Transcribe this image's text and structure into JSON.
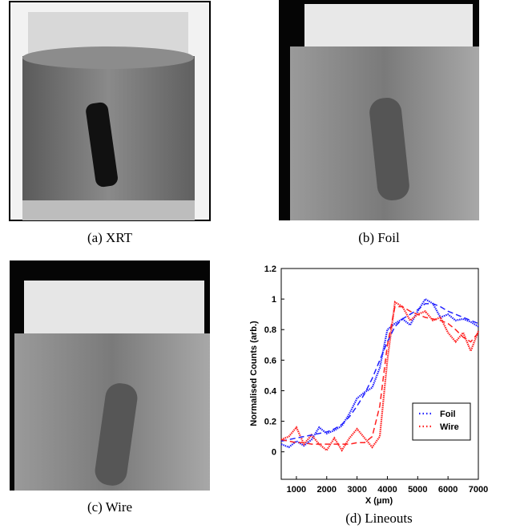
{
  "figure": {
    "captions": [
      "(a) XRT",
      "(b) Foil",
      "(c) Wire",
      "(d) Lineouts"
    ]
  },
  "chart_data": {
    "type": "line",
    "xlabel": "X (μm)",
    "ylabel": "Normalised Counts (arb.)",
    "x": [
      500,
      750,
      1000,
      1250,
      1500,
      1750,
      2000,
      2250,
      2500,
      2750,
      3000,
      3250,
      3500,
      3750,
      4000,
      4250,
      4500,
      4750,
      5000,
      5250,
      5500,
      5750,
      6000,
      6250,
      6500,
      6750,
      7000
    ],
    "series": [
      {
        "name": "Foil",
        "color": "#1f1fff",
        "style": "dotted",
        "values": [
          0.05,
          0.03,
          0.07,
          0.04,
          0.08,
          0.16,
          0.12,
          0.14,
          0.17,
          0.25,
          0.35,
          0.39,
          0.42,
          0.55,
          0.8,
          0.84,
          0.87,
          0.83,
          0.92,
          1.0,
          0.97,
          0.88,
          0.9,
          0.86,
          0.87,
          0.85,
          0.82
        ]
      },
      {
        "name": "Wire",
        "color": "#ff2020",
        "style": "dotted",
        "values": [
          0.08,
          0.1,
          0.16,
          0.05,
          0.11,
          0.05,
          0.01,
          0.09,
          0.01,
          0.09,
          0.15,
          0.09,
          0.03,
          0.1,
          0.6,
          0.98,
          0.95,
          0.86,
          0.9,
          0.92,
          0.86,
          0.88,
          0.78,
          0.72,
          0.78,
          0.66,
          0.79
        ]
      },
      {
        "color": "#1f1fff",
        "style": "dashed",
        "values": [
          0.07,
          0.08,
          0.09,
          0.1,
          0.11,
          0.12,
          0.13,
          0.15,
          0.18,
          0.23,
          0.3,
          0.38,
          0.48,
          0.6,
          0.72,
          0.82,
          0.87,
          0.9,
          0.93,
          0.97,
          0.97,
          0.95,
          0.92,
          0.9,
          0.88,
          0.86,
          0.84
        ]
      },
      {
        "color": "#ff2020",
        "style": "dashed",
        "values": [
          0.08,
          0.07,
          0.06,
          0.06,
          0.05,
          0.05,
          0.05,
          0.05,
          0.05,
          0.05,
          0.06,
          0.06,
          0.1,
          0.3,
          0.7,
          0.95,
          0.95,
          0.92,
          0.9,
          0.88,
          0.87,
          0.86,
          0.84,
          0.8,
          0.75,
          0.72,
          0.78
        ]
      }
    ],
    "xlim": [
      500,
      7000
    ],
    "xticks": [
      1000,
      2000,
      3000,
      4000,
      5000,
      6000,
      7000
    ],
    "ylim": [
      -0.18,
      1.2
    ],
    "yticks": [
      0,
      0.2,
      0.4,
      0.6,
      0.8,
      1,
      1.2
    ],
    "legend": "lower-right"
  }
}
